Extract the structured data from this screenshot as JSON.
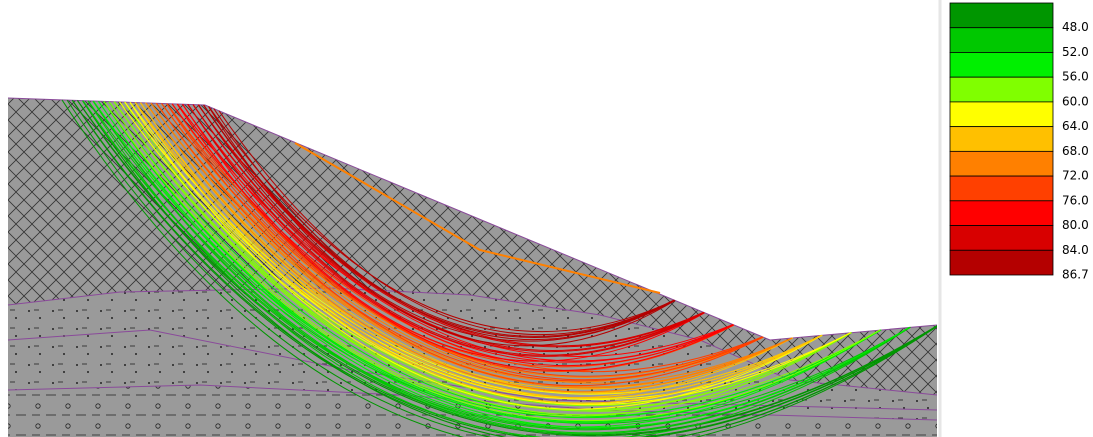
{
  "legend": {
    "items": [
      {
        "label": "48.0",
        "color": "#009600"
      },
      {
        "label": "52.0",
        "color": "#00c800"
      },
      {
        "label": "56.0",
        "color": "#00f000"
      },
      {
        "label": "60.0",
        "color": "#80ff00"
      },
      {
        "label": "64.0",
        "color": "#ffff00"
      },
      {
        "label": "68.0",
        "color": "#ffc000"
      },
      {
        "label": "72.0",
        "color": "#ff8000"
      },
      {
        "label": "76.0",
        "color": "#ff4000"
      },
      {
        "label": "80.0",
        "color": "#ff0000"
      },
      {
        "label": "84.0",
        "color": "#d80000"
      },
      {
        "label": "86.7",
        "color": "#b40000"
      }
    ]
  }
}
